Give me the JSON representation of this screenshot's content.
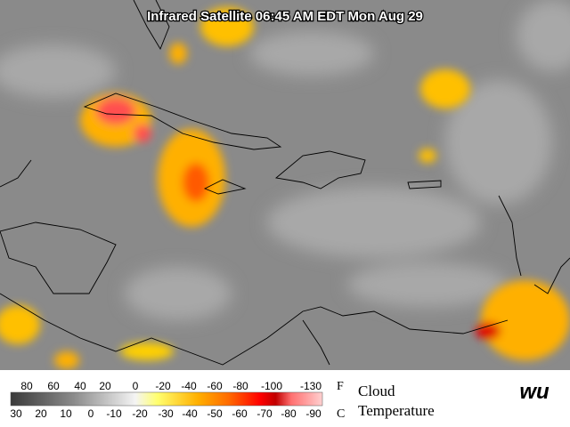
{
  "title": "Infrared Satellite 06:45 AM EDT Mon Aug 29",
  "legend": {
    "fahrenheit": {
      "unit": "F",
      "ticks": [
        "80",
        "60",
        "40",
        "20",
        "0",
        "-20",
        "-40",
        "-60",
        "-80",
        "-100",
        "-130"
      ]
    },
    "celsius": {
      "unit": "C",
      "ticks": [
        "30",
        "20",
        "10",
        "0",
        "-10",
        "-20",
        "-30",
        "-40",
        "-50",
        "-60",
        "-70",
        "-80",
        "-90"
      ]
    },
    "label": [
      "Cloud",
      "Temperature"
    ],
    "logo": "wu"
  }
}
